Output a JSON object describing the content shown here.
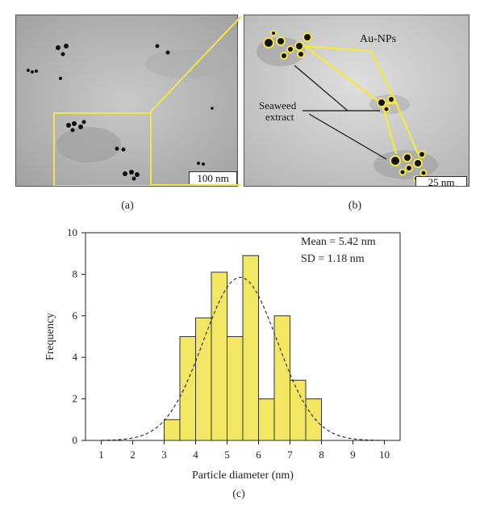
{
  "figure": {
    "panel_a": {
      "label": "(a)",
      "scale_bar": "100 nm"
    },
    "panel_b": {
      "label": "(b)",
      "scale_bar": "25 nm",
      "label_aunps": "Au-NPs",
      "label_seaweed_1": "Seaweed",
      "label_seaweed_2": "extract"
    },
    "panel_c": {
      "label": "(c)"
    },
    "colors": {
      "highlight": "#f2e64a",
      "bar_fill": "#f2e663",
      "bar_stroke": "#333333"
    }
  },
  "chart_data": {
    "type": "bar",
    "title": "",
    "xlabel": "Particle diameter (nm)",
    "ylabel": "Frequency",
    "xlim": [
      0.5,
      10.5
    ],
    "ylim": [
      0,
      10
    ],
    "xticks": [
      "1",
      "2",
      "3",
      "4",
      "5",
      "6",
      "7",
      "8",
      "9",
      "10"
    ],
    "yticks": [
      "0",
      "2",
      "4",
      "6",
      "8",
      "10"
    ],
    "bins": [
      {
        "start": 3.0,
        "end": 3.5,
        "value": 1
      },
      {
        "start": 3.5,
        "end": 4.0,
        "value": 5
      },
      {
        "start": 4.0,
        "end": 4.5,
        "value": 5.9
      },
      {
        "start": 4.5,
        "end": 5.0,
        "value": 8.1
      },
      {
        "start": 5.0,
        "end": 5.5,
        "value": 5
      },
      {
        "start": 5.5,
        "end": 6.0,
        "value": 8.9
      },
      {
        "start": 6.0,
        "end": 6.5,
        "value": 2
      },
      {
        "start": 6.5,
        "end": 7.0,
        "value": 6
      },
      {
        "start": 7.0,
        "end": 7.5,
        "value": 2.9
      },
      {
        "start": 7.5,
        "end": 8.0,
        "value": 2
      }
    ],
    "fit": {
      "type": "normal",
      "mean": 5.42,
      "sd": 1.18,
      "peak": 7.85
    },
    "annotations": [
      "Mean = 5.42 nm",
      "SD = 1.18 nm"
    ],
    "grid": false
  }
}
